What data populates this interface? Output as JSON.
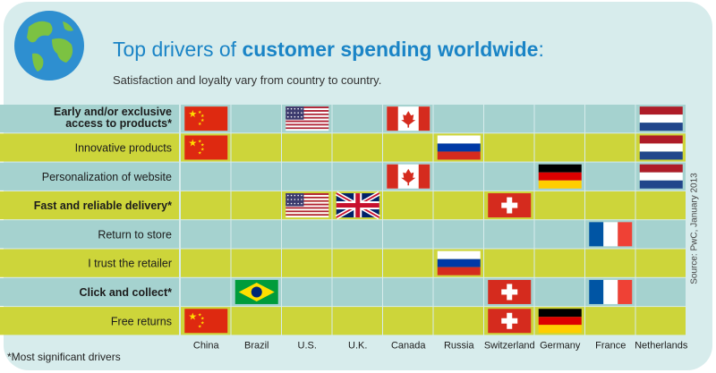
{
  "header": {
    "title_plain": "Top drivers of ",
    "title_bold": "customer spending worldwide",
    "title_colon": ":",
    "subtitle": "Satisfaction and loyalty vary from country to country."
  },
  "footnote": "*Most significant drivers",
  "source": "Source: PwC, January 2013",
  "colors": {
    "teal_row": "#a5d2cf",
    "lime_row": "#cdd53a",
    "title_blue": "#1a84c6"
  },
  "chart_data": {
    "type": "table",
    "columns": [
      "China",
      "Brazil",
      "U.S.",
      "U.K.",
      "Canada",
      "Russia",
      "Switzerland",
      "Germany",
      "France",
      "Netherlands"
    ],
    "rows": [
      {
        "label": "Early and/or exclusive access to products*",
        "lines": [
          "Early and/or exclusive",
          "access to products*"
        ],
        "bold": true,
        "flags": [
          "China",
          "U.S.",
          "Canada",
          "Netherlands"
        ]
      },
      {
        "label": "Innovative products",
        "lines": [
          "Innovative products"
        ],
        "bold": false,
        "flags": [
          "China",
          "Russia",
          "Netherlands"
        ]
      },
      {
        "label": "Personalization of website",
        "lines": [
          "Personalization of website"
        ],
        "bold": false,
        "flags": [
          "Canada",
          "Germany",
          "Netherlands"
        ]
      },
      {
        "label": "Fast and reliable delivery*",
        "lines": [
          "Fast and reliable delivery*"
        ],
        "bold": true,
        "flags": [
          "U.S.",
          "U.K.",
          "Switzerland"
        ]
      },
      {
        "label": "Return to store",
        "lines": [
          "Return to store"
        ],
        "bold": false,
        "flags": [
          "France"
        ]
      },
      {
        "label": "I trust the retailer",
        "lines": [
          "I trust the retailer"
        ],
        "bold": false,
        "flags": [
          "Russia"
        ]
      },
      {
        "label": "Click and collect*",
        "lines": [
          "Click and collect*"
        ],
        "bold": true,
        "flags": [
          "Brazil",
          "Switzerland",
          "France"
        ]
      },
      {
        "label": "Free returns",
        "lines": [
          "Free returns"
        ],
        "bold": false,
        "flags": [
          "China",
          "Switzerland",
          "Germany"
        ]
      }
    ]
  }
}
